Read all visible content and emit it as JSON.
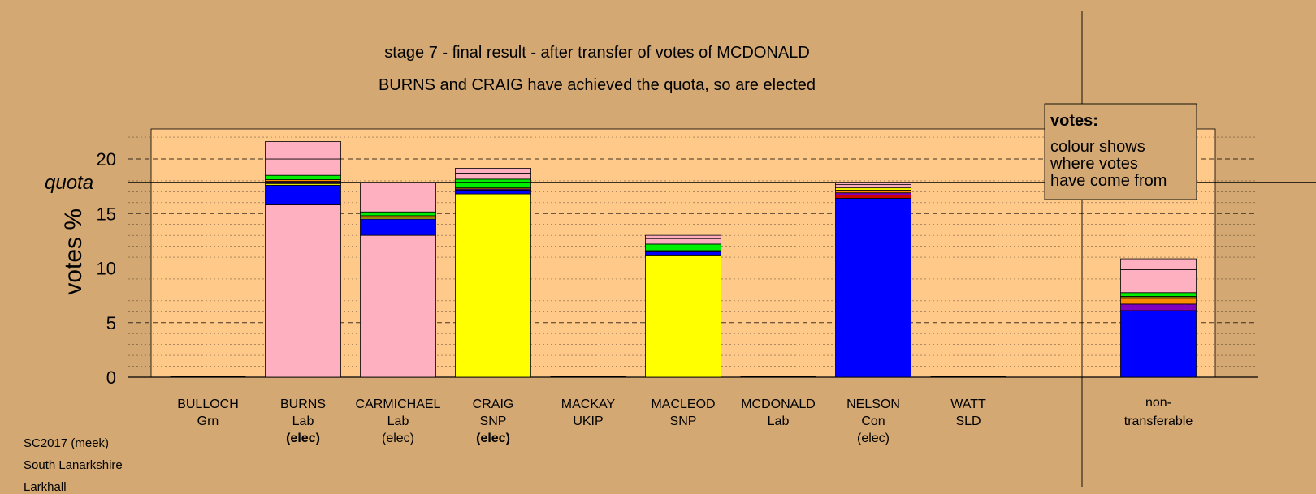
{
  "chart_data": {
    "type": "bar",
    "stacked": true,
    "title": "stage 7 - final result - after transfer of votes of MCDONALD",
    "subtitle": "BURNS and CRAIG have achieved the quota, so are elected",
    "ylabel": "votes %",
    "ylim": [
      0,
      23
    ],
    "yticks": [
      0,
      5,
      10,
      15,
      20
    ],
    "quota": 17.85,
    "quota_label": "quota",
    "grid": true,
    "legend": {
      "position": "top-right",
      "title": "votes:",
      "lines": [
        "colour shows",
        "where votes",
        "have come from"
      ]
    },
    "colors": {
      "Lab": "#ffb0c0",
      "SNP": "#ffff00",
      "Con": "#0000ff",
      "Grn": "#00ee00",
      "UKIP": "#8000c0",
      "SLD": "#ff8c00",
      "Con_alt": "#cc0000",
      "non_transferable_band": "#ffb0c0"
    },
    "candidates": [
      {
        "name": "BULLOCH",
        "party": "Grn",
        "status": "",
        "status_bold": false,
        "segments": []
      },
      {
        "name": "BURNS",
        "party": "Lab",
        "status": "(elec)",
        "status_bold": true,
        "segments": [
          {
            "color": "#ffb0c0",
            "value": 15.8
          },
          {
            "color": "#0000ff",
            "value": 1.8
          },
          {
            "color": "#ffff00",
            "value": 0.15
          },
          {
            "color": "#cc0000",
            "value": 0.1
          },
          {
            "color": "#8000c0",
            "value": 0.1
          },
          {
            "color": "#ff8c00",
            "value": 0.15
          },
          {
            "color": "#00ee00",
            "value": 0.4
          },
          {
            "color": "#ffb0c0",
            "value": 1.5
          },
          {
            "color": "#ffb0c0",
            "value": 1.6
          }
        ]
      },
      {
        "name": "CARMICHAEL",
        "party": "Lab",
        "status": "(elec)",
        "status_bold": false,
        "segments": [
          {
            "color": "#ffb0c0",
            "value": 13.0
          },
          {
            "color": "#0000ff",
            "value": 1.5
          },
          {
            "color": "#ffff00",
            "value": 0.15
          },
          {
            "color": "#ff8c00",
            "value": 0.15
          },
          {
            "color": "#00ee00",
            "value": 0.35
          },
          {
            "color": "#ffb0c0",
            "value": 2.7
          }
        ]
      },
      {
        "name": "CRAIG",
        "party": "SNP",
        "status": "(elec)",
        "status_bold": true,
        "segments": [
          {
            "color": "#ffff00",
            "value": 16.8
          },
          {
            "color": "#0000ff",
            "value": 0.35
          },
          {
            "color": "#8000c0",
            "value": 0.1
          },
          {
            "color": "#ff8c00",
            "value": 0.1
          },
          {
            "color": "#00ee00",
            "value": 0.8
          },
          {
            "color": "#ffb0c0",
            "value": 0.55
          },
          {
            "color": "#ffb0c0",
            "value": 0.45
          }
        ]
      },
      {
        "name": "MACKAY",
        "party": "UKIP",
        "status": "",
        "status_bold": false,
        "segments": []
      },
      {
        "name": "MACLEOD",
        "party": "SNP",
        "status": "",
        "status_bold": false,
        "segments": [
          {
            "color": "#ffff00",
            "value": 11.2
          },
          {
            "color": "#0000ff",
            "value": 0.3
          },
          {
            "color": "#ff8c00",
            "value": 0.1
          },
          {
            "color": "#00ee00",
            "value": 0.6
          },
          {
            "color": "#ffb0c0",
            "value": 0.5
          },
          {
            "color": "#ffb0c0",
            "value": 0.3
          }
        ]
      },
      {
        "name": "MCDONALD",
        "party": "Lab",
        "status": "",
        "status_bold": false,
        "segments": []
      },
      {
        "name": "NELSON",
        "party": "Con",
        "status": "(elec)",
        "status_bold": false,
        "segments": [
          {
            "color": "#0000ff",
            "value": 16.4
          },
          {
            "color": "#cc0000",
            "value": 0.3
          },
          {
            "color": "#8000c0",
            "value": 0.2
          },
          {
            "color": "#ff8c00",
            "value": 0.25
          },
          {
            "color": "#ffff00",
            "value": 0.2
          },
          {
            "color": "#ffb0c0",
            "value": 0.3
          },
          {
            "color": "#ffb0c0",
            "value": 0.15
          }
        ]
      },
      {
        "name": "WATT",
        "party": "SLD",
        "status": "",
        "status_bold": false,
        "segments": []
      }
    ],
    "nontransferable": {
      "label_line1": "non-",
      "label_line2": "transferable",
      "segments": [
        {
          "color": "#0000ff",
          "value": 6.1
        },
        {
          "color": "#8000c0",
          "value": 0.6
        },
        {
          "color": "#ff8c00",
          "value": 0.6
        },
        {
          "color": "#ffff00",
          "value": 0.1
        },
        {
          "color": "#00ee00",
          "value": 0.35
        },
        {
          "color": "#ffb0c0",
          "value": 2.1
        },
        {
          "color": "#ffb0c0",
          "value": 1.0
        }
      ]
    }
  },
  "footer": {
    "line1": "SC2017 (meek)",
    "line2": "South Lanarkshire",
    "line3": "Larkhall"
  }
}
